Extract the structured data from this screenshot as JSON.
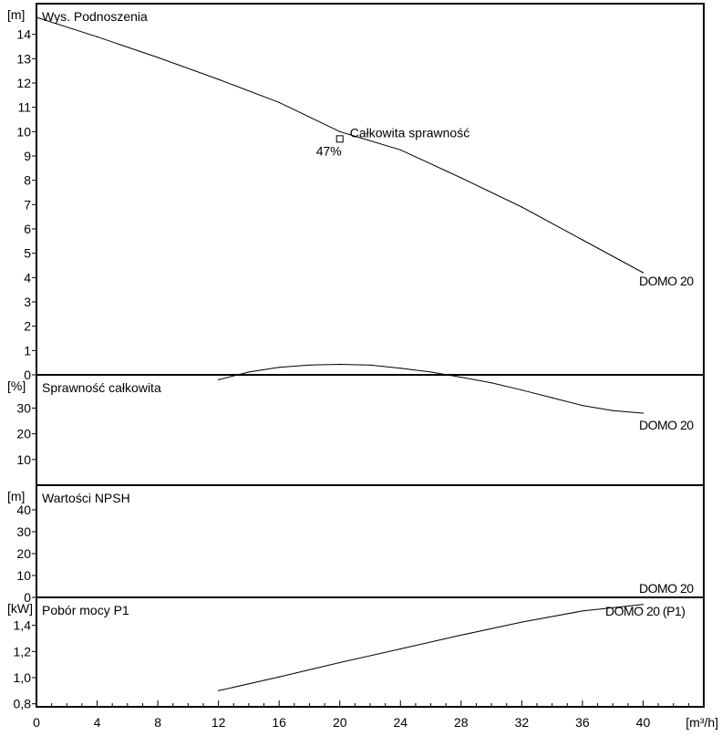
{
  "chart_data": {
    "type": "line",
    "x_axis": {
      "range": [
        0,
        44
      ],
      "ticks": [
        "0",
        "4",
        "8",
        "12",
        "16",
        "20",
        "24",
        "28",
        "32",
        "36",
        "40"
      ],
      "tick_values": [
        0,
        4,
        8,
        12,
        16,
        20,
        24,
        28,
        32,
        36,
        40
      ],
      "unit": "[m³/h]"
    },
    "panels": [
      {
        "title": "Wys. Podnoszenia",
        "unit": "[m]",
        "ylim": [
          0,
          15
        ],
        "yticks": [
          0,
          1,
          2,
          3,
          4,
          5,
          6,
          7,
          8,
          9,
          10,
          11,
          12,
          13,
          14
        ],
        "ytick_labels": [
          "0",
          "1",
          "2",
          "3",
          "4",
          "5",
          "6",
          "7",
          "8",
          "9",
          "10",
          "11",
          "12",
          "13",
          "14"
        ],
        "series": [
          {
            "name": "DOMO 20",
            "points": [
              [
                0,
                14.7
              ],
              [
                4,
                13.9
              ],
              [
                8,
                13.05
              ],
              [
                12,
                12.15
              ],
              [
                16,
                11.2
              ],
              [
                20,
                10.0
              ],
              [
                24,
                9.25
              ],
              [
                28,
                8.1
              ],
              [
                32,
                6.9
              ],
              [
                36,
                5.55
              ],
              [
                40,
                4.2
              ]
            ]
          }
        ],
        "marker": {
          "x": 20,
          "y": 9.7,
          "label": "Całkowita sprawność",
          "value_label": "47%"
        }
      },
      {
        "title": "Sprawność całkowita",
        "unit": "[%]",
        "ylim": [
          0,
          50
        ],
        "yticks": [
          10,
          20,
          30
        ],
        "ytick_labels": [
          "10",
          "20",
          "30"
        ],
        "series": [
          {
            "name": "DOMO 20",
            "points": [
              [
                12,
                41
              ],
              [
                14,
                44
              ],
              [
                16,
                45.8
              ],
              [
                18,
                46.7
              ],
              [
                20,
                47
              ],
              [
                22,
                46.7
              ],
              [
                24,
                45.5
              ],
              [
                26,
                44
              ],
              [
                28,
                42
              ],
              [
                30,
                39.8
              ],
              [
                32,
                37
              ],
              [
                34,
                34
              ],
              [
                36,
                31
              ],
              [
                38,
                29
              ],
              [
                40,
                28
              ]
            ]
          }
        ]
      },
      {
        "title": "Wartości NPSH",
        "unit": "[m]",
        "ylim": [
          0,
          50
        ],
        "yticks": [
          0,
          10,
          20,
          30,
          40
        ],
        "ytick_labels": [
          "0",
          "10",
          "20",
          "30",
          "40"
        ],
        "series": [
          {
            "name": "DOMO 20",
            "points": []
          }
        ]
      },
      {
        "title": "Pobór mocy P1",
        "unit": "[kW]",
        "ylim": [
          0.7,
          1.6
        ],
        "yticks": [
          0.8,
          1.0,
          1.2,
          1.4
        ],
        "ytick_labels": [
          "0,8",
          "1,0",
          "1,2",
          "1,4"
        ],
        "series": [
          {
            "name": "DOMO 20 (P1)",
            "points": [
              [
                12,
                0.9
              ],
              [
                16,
                1.005
              ],
              [
                20,
                1.115
              ],
              [
                24,
                1.22
              ],
              [
                28,
                1.325
              ],
              [
                32,
                1.425
              ],
              [
                36,
                1.51
              ],
              [
                40,
                1.56
              ]
            ]
          }
        ]
      }
    ]
  }
}
